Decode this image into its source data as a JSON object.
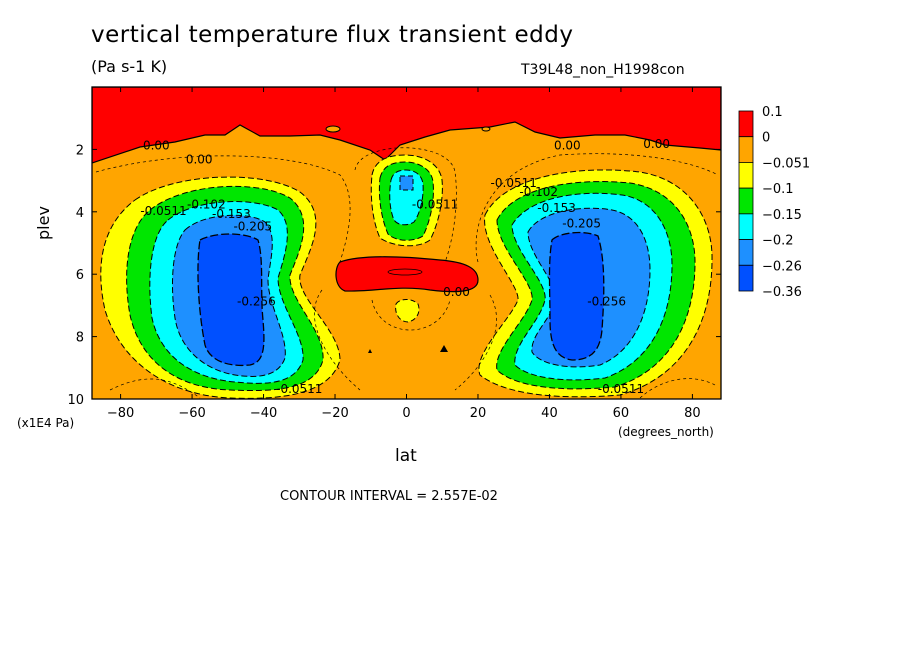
{
  "chart_data": {
    "type": "contour",
    "title": "vertical temperature flux transient eddy",
    "units": "(Pa s-1 K)",
    "run_label": "T39L48_non_H1998con",
    "xlabel": "lat",
    "xlabel_units": "(degrees_north)",
    "ylabel": "plev",
    "ylabel_units": "(x1E4 Pa)",
    "x_ticks": [
      -80,
      -60,
      -40,
      -20,
      0,
      20,
      40,
      60,
      80
    ],
    "x_tick_labels": [
      "−80",
      "−60",
      "−40",
      "−20",
      "0",
      "20",
      "40",
      "60",
      "80"
    ],
    "y_ticks": [
      2,
      4,
      6,
      8,
      10
    ],
    "y_tick_labels": [
      "2",
      "4",
      "6",
      "8",
      "10"
    ],
    "xlim": [
      -88,
      88
    ],
    "ylim": [
      10,
      0
    ],
    "contour_interval_text": "CONTOUR INTERVAL = 2.557E-02",
    "colorbar": {
      "labels": [
        "0.1",
        "0",
        "−0.051",
        "−0.1",
        "−0.15",
        "−0.2",
        "−0.26",
        "−0.36"
      ],
      "colors": [
        "#ff0000",
        "#ffa500",
        "#ffff00",
        "#00e600",
        "#00ffff",
        "#1e90ff",
        "#0050ff"
      ]
    },
    "contour_labels": [
      {
        "text": "0.00",
        "lat": -70,
        "plev": 2.0
      },
      {
        "text": "0.00",
        "lat": -58,
        "plev": 2.45
      },
      {
        "text": "0.00",
        "lat": 45,
        "plev": 2.0
      },
      {
        "text": "0.00",
        "lat": 70,
        "plev": 1.95
      },
      {
        "text": "0.00",
        "lat": 14,
        "plev": 6.7
      },
      {
        "text": "-0.0511",
        "lat": -68,
        "plev": 4.1
      },
      {
        "text": "-0.102",
        "lat": -56,
        "plev": 3.9
      },
      {
        "text": "-0.153",
        "lat": -49,
        "plev": 4.2
      },
      {
        "text": "-0.205",
        "lat": -43,
        "plev": 4.6
      },
      {
        "text": "-0.256",
        "lat": -42,
        "plev": 7.0
      },
      {
        "text": "-0.0511",
        "lat": -30,
        "plev": 9.8
      },
      {
        "text": "-0.0511",
        "lat": 8,
        "plev": 3.9
      },
      {
        "text": "-0.0511",
        "lat": 30,
        "plev": 3.2
      },
      {
        "text": "-0.102",
        "lat": 37,
        "plev": 3.5
      },
      {
        "text": "-0.153",
        "lat": 42,
        "plev": 4.0
      },
      {
        "text": "-0.205",
        "lat": 49,
        "plev": 4.5
      },
      {
        "text": "-0.256",
        "lat": 56,
        "plev": 7.0
      },
      {
        "text": "-0.0511",
        "lat": 60,
        "plev": 9.8
      }
    ]
  }
}
